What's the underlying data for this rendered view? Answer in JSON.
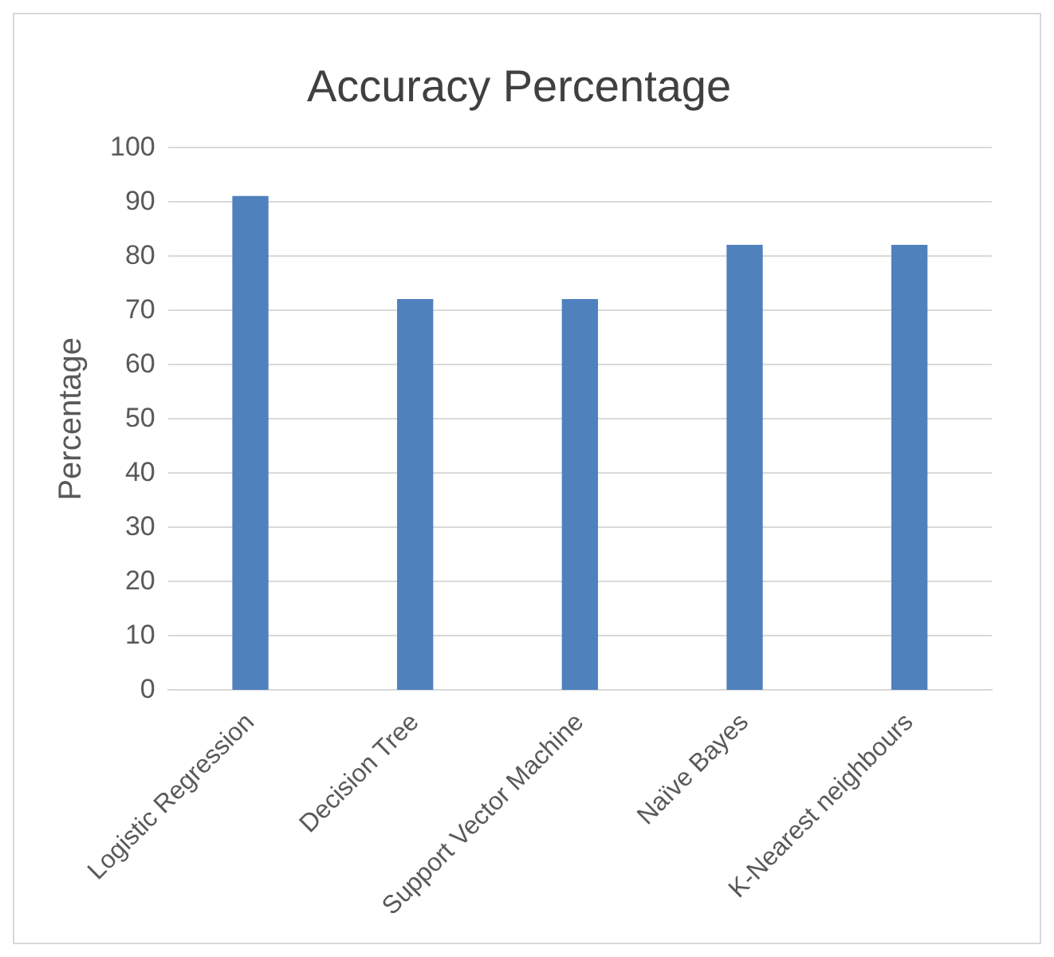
{
  "chart_data": {
    "type": "bar",
    "title": "Accuracy Percentage",
    "ylabel": "Percentage",
    "categories": [
      "Logistic Regression",
      "Decision Tree",
      "Support Vector Machine",
      "Naïve Bayes",
      "K-Nearest neighbours"
    ],
    "values": [
      91,
      72,
      72,
      82,
      82
    ],
    "color": "#4f81bd",
    "ylim": [
      0,
      100
    ],
    "yticks": [
      0,
      10,
      20,
      30,
      40,
      50,
      60,
      70,
      80,
      90,
      100
    ],
    "grid": "y",
    "legend": false
  }
}
